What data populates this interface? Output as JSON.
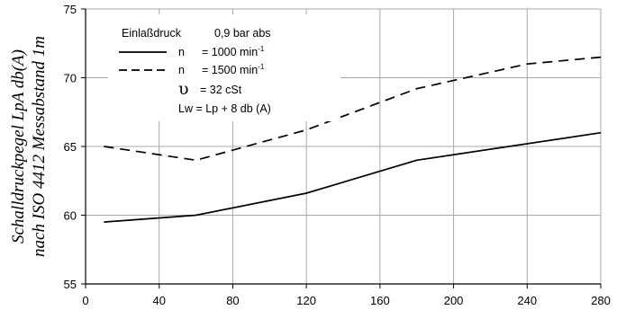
{
  "chart_data": {
    "type": "line",
    "xlabel": "",
    "ylabel": [
      "Schalldruckpegel LpA db(A)",
      "nach ISO 4412 Messabstand 1m"
    ],
    "xlim": [
      0,
      280
    ],
    "ylim": [
      55,
      75
    ],
    "x_ticks": [
      0,
      40,
      80,
      120,
      160,
      200,
      240,
      280
    ],
    "y_ticks": [
      55,
      60,
      65,
      70,
      75
    ],
    "x_tick_labels": [
      "0",
      "40",
      "80",
      "120",
      "160",
      "200",
      "240",
      "280"
    ],
    "y_tick_labels": [
      "55",
      "60",
      "65",
      "70",
      "75"
    ],
    "grid": true,
    "legend_position": "top-left",
    "series": [
      {
        "name": "n = 1000 min-1",
        "style": "solid",
        "color": "#000000",
        "x": [
          10,
          60,
          120,
          180,
          280
        ],
        "y": [
          59.5,
          60.0,
          61.6,
          64.0,
          66.0
        ]
      },
      {
        "name": "n = 1500 min-1",
        "style": "dashed",
        "color": "#000000",
        "x": [
          10,
          60,
          120,
          180,
          240,
          280
        ],
        "y": [
          65.0,
          64.0,
          66.2,
          69.2,
          71.0,
          71.5
        ]
      }
    ],
    "legend": {
      "line1_label": "Einlaßdruck",
      "line1_value": "0,9 bar abs",
      "entries": [
        {
          "n": "n",
          "eq": "= 1000 min",
          "sup": "-1",
          "style": "solid"
        },
        {
          "n": "n",
          "eq": "= 1500 min",
          "sup": "-1",
          "style": "dashed"
        }
      ],
      "viscosity_symbol": "υ",
      "viscosity_text": "= 32 cSt",
      "formula": "Lw = Lp + 8 db (A)"
    }
  }
}
